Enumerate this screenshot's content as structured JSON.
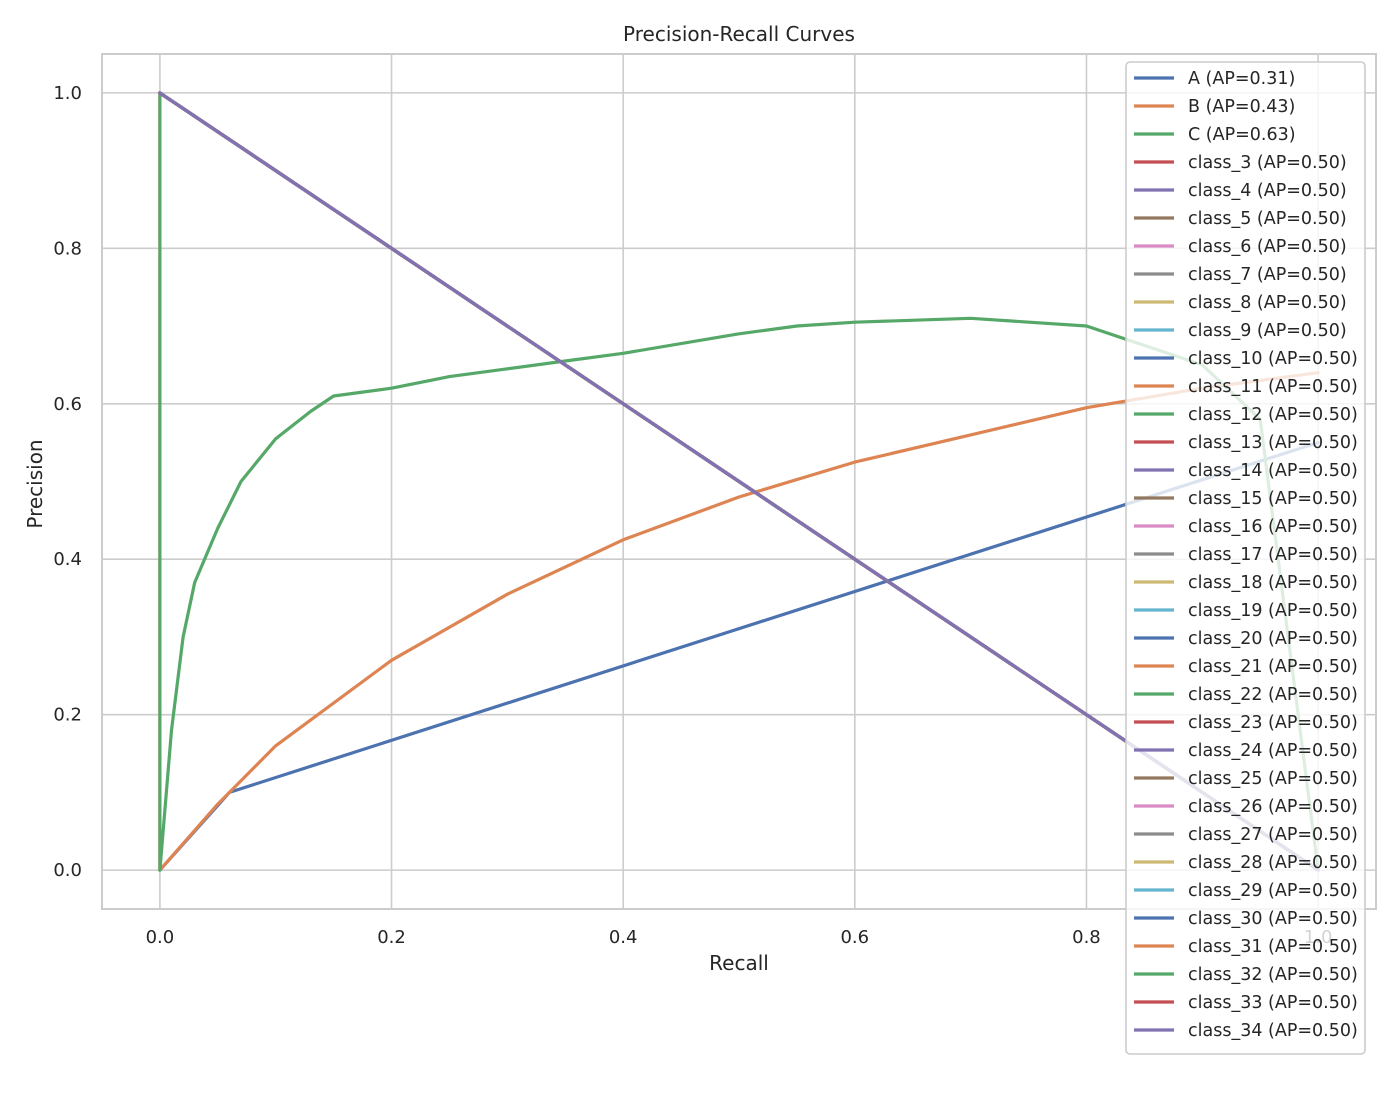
{
  "chart_data": {
    "type": "line",
    "title": "Precision-Recall Curves",
    "xlabel": "Recall",
    "ylabel": "Precision",
    "xlim": [
      -0.05,
      1.05
    ],
    "ylim": [
      -0.05,
      1.05
    ],
    "xticks": [
      0.0,
      0.2,
      0.4,
      0.6,
      0.8,
      1.0
    ],
    "xtick_labels": [
      "0.0",
      "0.2",
      "0.4",
      "0.6",
      "0.8",
      "1.0"
    ],
    "yticks": [
      0.0,
      0.2,
      0.4,
      0.6,
      0.8,
      1.0
    ],
    "ytick_labels": [
      "0.0",
      "0.2",
      "0.4",
      "0.6",
      "0.8",
      "1.0"
    ],
    "grid": true,
    "legend_position": "upper-right",
    "palette": [
      "#4c72b0",
      "#dd8452",
      "#55a868",
      "#c44e52",
      "#8172b3",
      "#937860",
      "#da8bc3",
      "#8c8c8c",
      "#ccb974",
      "#64b5cd"
    ],
    "series": [
      {
        "name": "A (AP=0.31)",
        "x": [
          0,
          0,
          0.06,
          1.0
        ],
        "y": [
          0,
          0.0,
          0.1,
          0.55
        ]
      },
      {
        "name": "B (AP=0.43)",
        "x": [
          0,
          0.0,
          0.0,
          0.0,
          0.05,
          0.1,
          0.2,
          0.3,
          0.4,
          0.5,
          0.6,
          0.7,
          0.8,
          0.9,
          1.0
        ],
        "y": [
          1.0,
          0.05,
          0.0,
          0.0,
          0.085,
          0.16,
          0.27,
          0.355,
          0.425,
          0.48,
          0.525,
          0.56,
          0.595,
          0.62,
          0.64
        ]
      },
      {
        "name": "C (AP=0.63)",
        "x": [
          0,
          0.0,
          0.0,
          0.01,
          0.02,
          0.03,
          0.05,
          0.07,
          0.1,
          0.13,
          0.15,
          0.2,
          0.25,
          0.3,
          0.35,
          0.4,
          0.5,
          0.55,
          0.6,
          0.7,
          0.8,
          0.9,
          0.95,
          1.0
        ],
        "y": [
          1.0,
          0.1,
          0.0,
          0.18,
          0.3,
          0.37,
          0.44,
          0.5,
          0.555,
          0.59,
          0.61,
          0.62,
          0.635,
          0.645,
          0.655,
          0.665,
          0.69,
          0.7,
          0.705,
          0.71,
          0.7,
          0.65,
          0.58,
          0.0
        ]
      },
      {
        "name": "class_3 (AP=0.50)",
        "x": [
          0,
          1
        ],
        "y": [
          1,
          0
        ]
      },
      {
        "name": "class_4 (AP=0.50)",
        "x": [
          0,
          1
        ],
        "y": [
          1,
          0
        ]
      },
      {
        "name": "class_5 (AP=0.50)",
        "x": [
          0,
          1
        ],
        "y": [
          1,
          0
        ]
      },
      {
        "name": "class_6 (AP=0.50)",
        "x": [
          0,
          1
        ],
        "y": [
          1,
          0
        ]
      },
      {
        "name": "class_7 (AP=0.50)",
        "x": [
          0,
          1
        ],
        "y": [
          1,
          0
        ]
      },
      {
        "name": "class_8 (AP=0.50)",
        "x": [
          0,
          1
        ],
        "y": [
          1,
          0
        ]
      },
      {
        "name": "class_9 (AP=0.50)",
        "x": [
          0,
          1
        ],
        "y": [
          1,
          0
        ]
      },
      {
        "name": "class_10 (AP=0.50)",
        "x": [
          0,
          1
        ],
        "y": [
          1,
          0
        ]
      },
      {
        "name": "class_11 (AP=0.50)",
        "x": [
          0,
          1
        ],
        "y": [
          1,
          0
        ]
      },
      {
        "name": "class_12 (AP=0.50)",
        "x": [
          0,
          1
        ],
        "y": [
          1,
          0
        ]
      },
      {
        "name": "class_13 (AP=0.50)",
        "x": [
          0,
          1
        ],
        "y": [
          1,
          0
        ]
      },
      {
        "name": "class_14 (AP=0.50)",
        "x": [
          0,
          1
        ],
        "y": [
          1,
          0
        ]
      },
      {
        "name": "class_15 (AP=0.50)",
        "x": [
          0,
          1
        ],
        "y": [
          1,
          0
        ]
      },
      {
        "name": "class_16 (AP=0.50)",
        "x": [
          0,
          1
        ],
        "y": [
          1,
          0
        ]
      },
      {
        "name": "class_17 (AP=0.50)",
        "x": [
          0,
          1
        ],
        "y": [
          1,
          0
        ]
      },
      {
        "name": "class_18 (AP=0.50)",
        "x": [
          0,
          1
        ],
        "y": [
          1,
          0
        ]
      },
      {
        "name": "class_19 (AP=0.50)",
        "x": [
          0,
          1
        ],
        "y": [
          1,
          0
        ]
      },
      {
        "name": "class_20 (AP=0.50)",
        "x": [
          0,
          1
        ],
        "y": [
          1,
          0
        ]
      },
      {
        "name": "class_21 (AP=0.50)",
        "x": [
          0,
          1
        ],
        "y": [
          1,
          0
        ]
      },
      {
        "name": "class_22 (AP=0.50)",
        "x": [
          0,
          1
        ],
        "y": [
          1,
          0
        ]
      },
      {
        "name": "class_23 (AP=0.50)",
        "x": [
          0,
          1
        ],
        "y": [
          1,
          0
        ]
      },
      {
        "name": "class_24 (AP=0.50)",
        "x": [
          0,
          1
        ],
        "y": [
          1,
          0
        ]
      },
      {
        "name": "class_25 (AP=0.50)",
        "x": [
          0,
          1
        ],
        "y": [
          1,
          0
        ]
      },
      {
        "name": "class_26 (AP=0.50)",
        "x": [
          0,
          1
        ],
        "y": [
          1,
          0
        ]
      },
      {
        "name": "class_27 (AP=0.50)",
        "x": [
          0,
          1
        ],
        "y": [
          1,
          0
        ]
      },
      {
        "name": "class_28 (AP=0.50)",
        "x": [
          0,
          1
        ],
        "y": [
          1,
          0
        ]
      },
      {
        "name": "class_29 (AP=0.50)",
        "x": [
          0,
          1
        ],
        "y": [
          1,
          0
        ]
      },
      {
        "name": "class_30 (AP=0.50)",
        "x": [
          0,
          1
        ],
        "y": [
          1,
          0
        ]
      },
      {
        "name": "class_31 (AP=0.50)",
        "x": [
          0,
          1
        ],
        "y": [
          1,
          0
        ]
      },
      {
        "name": "class_32 (AP=0.50)",
        "x": [
          0,
          1
        ],
        "y": [
          1,
          0
        ]
      },
      {
        "name": "class_33 (AP=0.50)",
        "x": [
          0,
          1
        ],
        "y": [
          1,
          0
        ]
      },
      {
        "name": "class_34 (AP=0.50)",
        "x": [
          0,
          1
        ],
        "y": [
          1,
          0
        ]
      }
    ]
  }
}
